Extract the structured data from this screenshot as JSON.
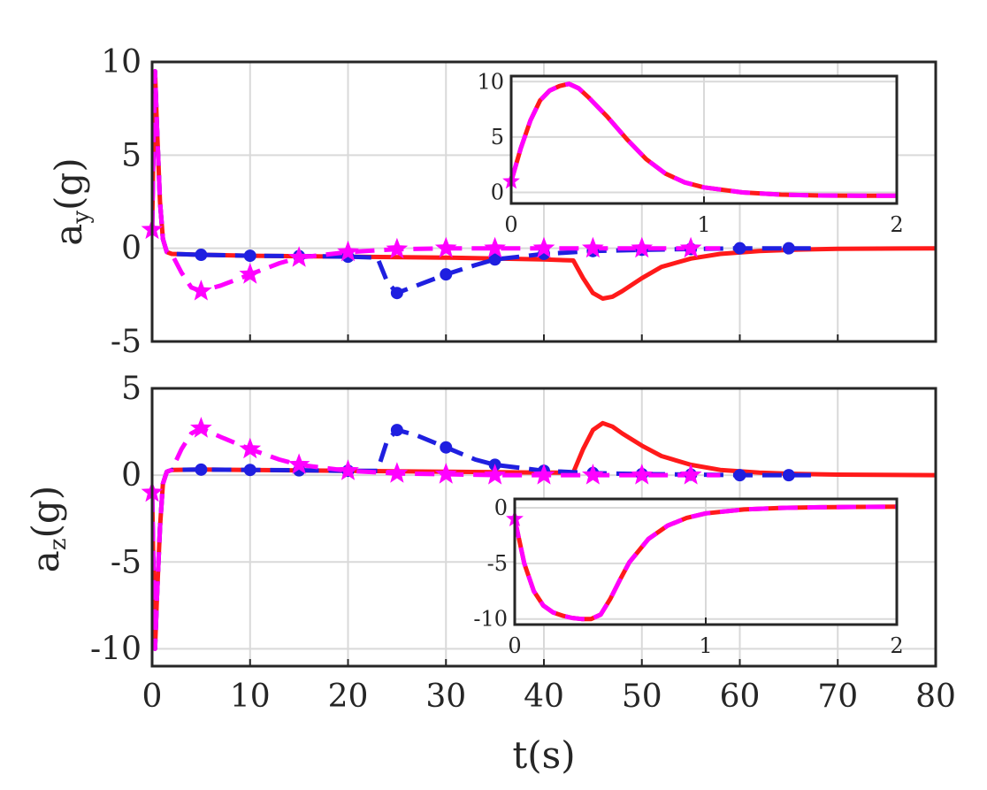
{
  "chart_data": [
    {
      "type": "line",
      "panel": "top",
      "ylabel_main": "a",
      "ylabel_sub": "y",
      "ylabel_unit": "(g)",
      "xlim": [
        0,
        80
      ],
      "ylim": [
        -5,
        10
      ],
      "xticks": [
        0,
        10,
        20,
        30,
        40,
        50,
        60,
        70,
        80
      ],
      "yticks": [
        -5,
        0,
        5,
        10
      ],
      "ytick_labels": [
        "-5",
        "0",
        "5",
        "10"
      ],
      "grid": true,
      "series": [
        {
          "name": "red-solid",
          "color": "#ff1a1a",
          "x": [
            0,
            0.15,
            0.3,
            0.5,
            0.8,
            1.1,
            1.5,
            2,
            5,
            10,
            20,
            30,
            40,
            43,
            44,
            45,
            46,
            47,
            48,
            50,
            52,
            55,
            58,
            62,
            66,
            70,
            80
          ],
          "y": [
            1,
            6,
            9.5,
            6.5,
            2.5,
            0.5,
            -0.2,
            -0.3,
            -0.35,
            -0.4,
            -0.45,
            -0.5,
            -0.6,
            -0.65,
            -1.6,
            -2.4,
            -2.7,
            -2.6,
            -2.3,
            -1.6,
            -1.0,
            -0.55,
            -0.3,
            -0.15,
            -0.07,
            -0.03,
            0
          ]
        },
        {
          "name": "blue-dashed-circle",
          "color": "#1f1fe0",
          "x": [
            0,
            0.15,
            0.3,
            0.5,
            0.8,
            1.1,
            1.5,
            2,
            5,
            10,
            15,
            20,
            23,
            24,
            25,
            27,
            30,
            33,
            35,
            40,
            45,
            50,
            55,
            60,
            65,
            68
          ],
          "y": [
            1,
            6,
            9.5,
            6.5,
            2.5,
            0.5,
            -0.2,
            -0.3,
            -0.35,
            -0.4,
            -0.42,
            -0.45,
            -0.5,
            -1.8,
            -2.4,
            -2.0,
            -1.4,
            -0.9,
            -0.6,
            -0.3,
            -0.15,
            -0.08,
            -0.04,
            0,
            0,
            0
          ],
          "markers_x": [
            5,
            10,
            15,
            20,
            25,
            30,
            35,
            40,
            45,
            50,
            55,
            60,
            65
          ],
          "markers_y": [
            -0.35,
            -0.4,
            -0.42,
            -0.45,
            -2.4,
            -1.4,
            -0.6,
            -0.3,
            -0.15,
            -0.08,
            -0.04,
            0,
            0
          ]
        },
        {
          "name": "magenta-dashed-star",
          "color": "#ff00ff",
          "x": [
            0,
            0.15,
            0.3,
            0.5,
            0.8,
            1.1,
            1.5,
            2,
            3,
            4,
            5,
            7,
            10,
            13,
            15,
            20,
            25,
            30,
            35,
            40,
            45,
            50,
            55,
            58
          ],
          "y": [
            1,
            6,
            9.5,
            6.5,
            2.5,
            0.5,
            -0.2,
            -0.3,
            -1.3,
            -2.1,
            -2.3,
            -2.0,
            -1.4,
            -0.8,
            -0.5,
            -0.2,
            -0.05,
            0,
            0,
            0,
            0,
            0,
            0,
            0
          ],
          "markers_x": [
            0,
            5,
            10,
            15,
            20,
            25,
            30,
            35,
            40,
            45,
            50,
            55
          ],
          "markers_y": [
            1,
            -2.3,
            -1.4,
            -0.5,
            -0.2,
            -0.05,
            0,
            0,
            0,
            0,
            0,
            0
          ]
        }
      ]
    },
    {
      "type": "line",
      "panel": "top-inset",
      "xlim": [
        0,
        2
      ],
      "ylim": [
        -1,
        10.5
      ],
      "xticks": [
        0,
        1,
        2
      ],
      "yticks": [
        0,
        5,
        10
      ],
      "ytick_labels": [
        "0",
        "5",
        "10"
      ],
      "grid": true,
      "series": [
        {
          "name": "red-solid",
          "color": "#ff1a1a",
          "x": [
            0,
            0.05,
            0.1,
            0.15,
            0.2,
            0.25,
            0.3,
            0.35,
            0.4,
            0.5,
            0.6,
            0.7,
            0.8,
            0.9,
            1.0,
            1.2,
            1.4,
            1.6,
            1.8,
            2.0
          ],
          "y": [
            1,
            4,
            6.5,
            8.3,
            9.2,
            9.6,
            9.8,
            9.4,
            8.6,
            6.8,
            4.8,
            3.0,
            1.7,
            0.9,
            0.45,
            0.0,
            -0.2,
            -0.28,
            -0.3,
            -0.3
          ]
        },
        {
          "name": "magenta-dashed",
          "color": "#ff00ff",
          "x": [
            0,
            0.05,
            0.1,
            0.15,
            0.2,
            0.25,
            0.3,
            0.35,
            0.4,
            0.5,
            0.6,
            0.7,
            0.8,
            0.9,
            1.0,
            1.2,
            1.4,
            1.6,
            1.8,
            2.0
          ],
          "y": [
            1,
            4,
            6.5,
            8.3,
            9.2,
            9.6,
            9.8,
            9.4,
            8.6,
            6.8,
            4.8,
            3.0,
            1.7,
            0.9,
            0.45,
            0.0,
            -0.2,
            -0.28,
            -0.3,
            -0.3
          ],
          "markers_x": [
            0
          ],
          "markers_y": [
            1
          ]
        }
      ]
    },
    {
      "type": "line",
      "panel": "bottom",
      "ylabel_main": "a",
      "ylabel_sub": "z",
      "ylabel_unit": "(g)",
      "xlabel": "t(s)",
      "xlim": [
        0,
        80
      ],
      "ylim": [
        -11,
        5
      ],
      "xticks": [
        0,
        10,
        20,
        30,
        40,
        50,
        60,
        70,
        80
      ],
      "xtick_labels": [
        "0",
        "10",
        "20",
        "30",
        "40",
        "50",
        "60",
        "70",
        "80"
      ],
      "yticks": [
        -10,
        -5,
        0,
        5
      ],
      "ytick_labels": [
        "-10",
        "-5",
        "0",
        "5"
      ],
      "grid": true,
      "series": [
        {
          "name": "red-solid",
          "color": "#ff1a1a",
          "x": [
            0,
            0.15,
            0.3,
            0.5,
            0.8,
            1.1,
            1.5,
            2,
            5,
            10,
            20,
            30,
            40,
            43,
            44,
            45,
            46,
            47,
            48,
            50,
            52,
            55,
            58,
            62,
            66,
            70,
            80
          ],
          "y": [
            -1,
            -6,
            -10,
            -7,
            -3,
            -0.5,
            0.2,
            0.3,
            0.32,
            0.3,
            0.25,
            0.2,
            0.15,
            0.15,
            1.5,
            2.6,
            3.0,
            2.8,
            2.4,
            1.7,
            1.1,
            0.6,
            0.3,
            0.15,
            0.07,
            0.03,
            0
          ]
        },
        {
          "name": "blue-dashed-circle",
          "color": "#1f1fe0",
          "x": [
            0,
            0.15,
            0.3,
            0.5,
            0.8,
            1.1,
            1.5,
            2,
            5,
            10,
            15,
            20,
            23,
            24,
            25,
            27,
            30,
            33,
            35,
            40,
            45,
            50,
            55,
            60,
            65,
            68
          ],
          "y": [
            -1,
            -6,
            -10,
            -7,
            -3,
            -0.5,
            0.2,
            0.3,
            0.32,
            0.3,
            0.28,
            0.25,
            0.25,
            2.0,
            2.6,
            2.3,
            1.6,
            0.9,
            0.6,
            0.25,
            0.12,
            0.06,
            0.03,
            0,
            0,
            0
          ],
          "markers_x": [
            5,
            10,
            15,
            20,
            25,
            30,
            35,
            40,
            45,
            50,
            55,
            60,
            65
          ],
          "markers_y": [
            0.32,
            0.3,
            0.28,
            0.25,
            2.6,
            1.6,
            0.6,
            0.25,
            0.12,
            0.06,
            0.03,
            0,
            0
          ]
        },
        {
          "name": "magenta-dashed-star",
          "color": "#ff00ff",
          "x": [
            0,
            0.15,
            0.3,
            0.5,
            0.8,
            1.1,
            1.5,
            2,
            3,
            4,
            5,
            7,
            10,
            13,
            15,
            20,
            25,
            30,
            35,
            40,
            45,
            50,
            55,
            58
          ],
          "y": [
            -1,
            -6,
            -10,
            -7,
            -3,
            -0.5,
            0.2,
            0.3,
            1.5,
            2.4,
            2.7,
            2.2,
            1.5,
            0.9,
            0.6,
            0.25,
            0.1,
            0.05,
            0,
            0,
            0,
            0,
            0,
            0
          ],
          "markers_x": [
            0,
            5,
            10,
            15,
            20,
            25,
            30,
            35,
            40,
            45,
            50,
            55
          ],
          "markers_y": [
            -1,
            2.7,
            1.5,
            0.6,
            0.25,
            0.1,
            0.05,
            0,
            0,
            0,
            0,
            0
          ]
        }
      ]
    },
    {
      "type": "line",
      "panel": "bottom-inset",
      "xlim": [
        0,
        2
      ],
      "ylim": [
        -10.5,
        0.8
      ],
      "xticks": [
        0,
        1,
        2
      ],
      "yticks": [
        -10,
        -5,
        0
      ],
      "ytick_labels": [
        "-10",
        "-5",
        "0"
      ],
      "grid": true,
      "series": [
        {
          "name": "red-solid",
          "color": "#ff1a1a",
          "x": [
            0,
            0.05,
            0.1,
            0.15,
            0.2,
            0.25,
            0.3,
            0.35,
            0.4,
            0.45,
            0.5,
            0.55,
            0.6,
            0.7,
            0.8,
            0.9,
            1.0,
            1.2,
            1.4,
            1.6,
            1.8,
            2.0
          ],
          "y": [
            -1,
            -5,
            -7.5,
            -8.8,
            -9.4,
            -9.7,
            -9.9,
            -10.0,
            -10.0,
            -9.6,
            -8.2,
            -6.5,
            -4.9,
            -2.8,
            -1.6,
            -0.9,
            -0.5,
            -0.15,
            0.0,
            0.05,
            0.08,
            0.1
          ]
        },
        {
          "name": "magenta-dashed",
          "color": "#ff00ff",
          "x": [
            0,
            0.05,
            0.1,
            0.15,
            0.2,
            0.25,
            0.3,
            0.35,
            0.4,
            0.45,
            0.5,
            0.55,
            0.6,
            0.7,
            0.8,
            0.9,
            1.0,
            1.2,
            1.4,
            1.6,
            1.8,
            2.0
          ],
          "y": [
            -1,
            -5,
            -7.5,
            -8.8,
            -9.4,
            -9.7,
            -9.9,
            -10.0,
            -10.0,
            -9.6,
            -8.2,
            -6.5,
            -4.9,
            -2.8,
            -1.6,
            -0.9,
            -0.5,
            -0.15,
            0.0,
            0.05,
            0.08,
            0.1
          ],
          "markers_x": [
            0
          ],
          "markers_y": [
            -1
          ]
        }
      ]
    }
  ]
}
